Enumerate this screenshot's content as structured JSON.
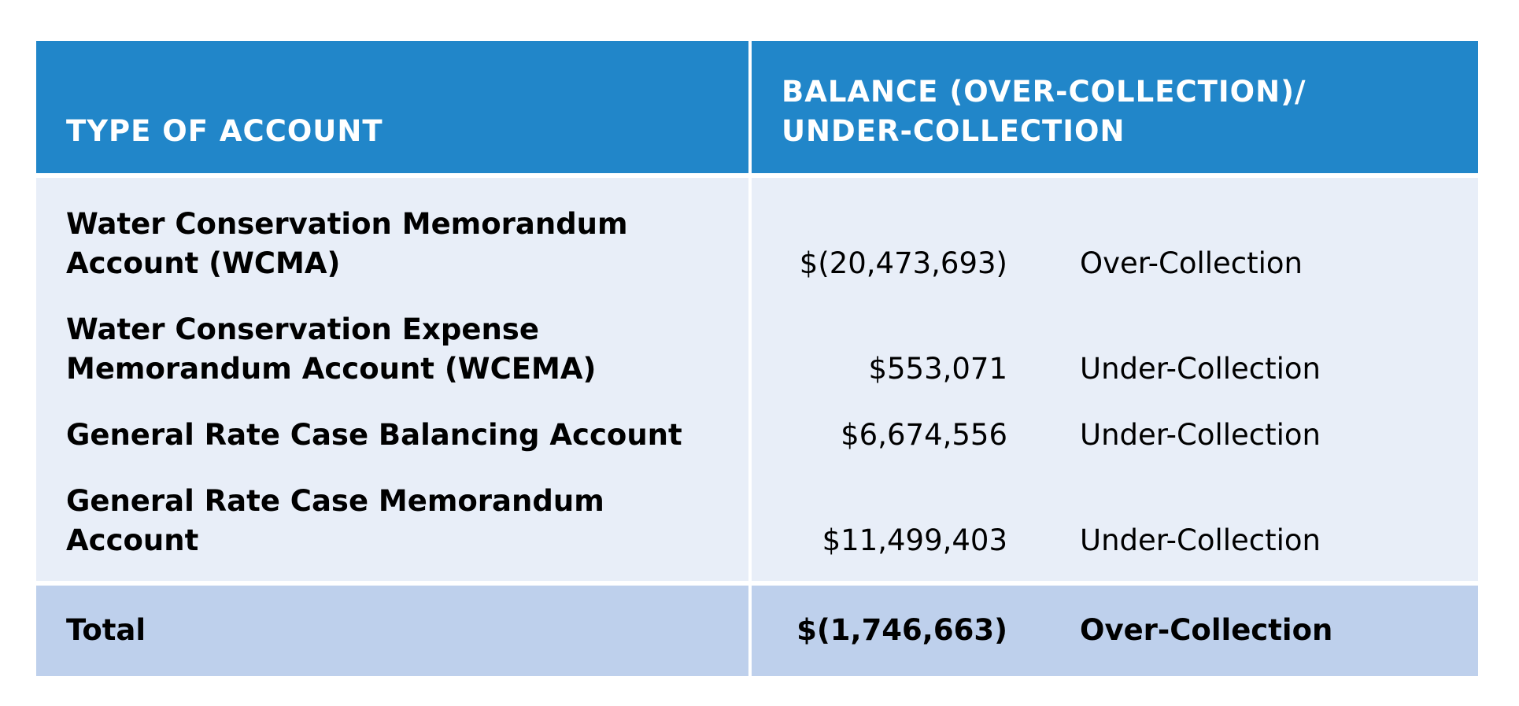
{
  "header": {
    "account_type": "TYPE OF ACCOUNT",
    "balance": "BALANCE (OVER-COLLECTION)/\nUNDER-COLLECTION"
  },
  "rows": [
    {
      "name": "Water Conservation Memorandum\nAccount (WCMA)",
      "amount": "$(20,473,693)",
      "status": "Over-Collection"
    },
    {
      "name": "Water Conservation Expense\nMemorandum Account (WCEMA)",
      "amount": "$553,071",
      "status": "Under-Collection"
    },
    {
      "name": "General Rate Case Balancing Account",
      "amount": "$6,674,556",
      "status": "Under-Collection"
    },
    {
      "name": "General Rate Case Memorandum\nAccount",
      "amount": "$11,499,403",
      "status": "Under-Collection"
    }
  ],
  "total": {
    "label": "Total",
    "amount": "$(1,746,663)",
    "status": "Over-Collection"
  },
  "colors": {
    "header_bg": "#2186c9",
    "body_bg": "#e8eef8",
    "total_bg": "#bed0ec"
  }
}
